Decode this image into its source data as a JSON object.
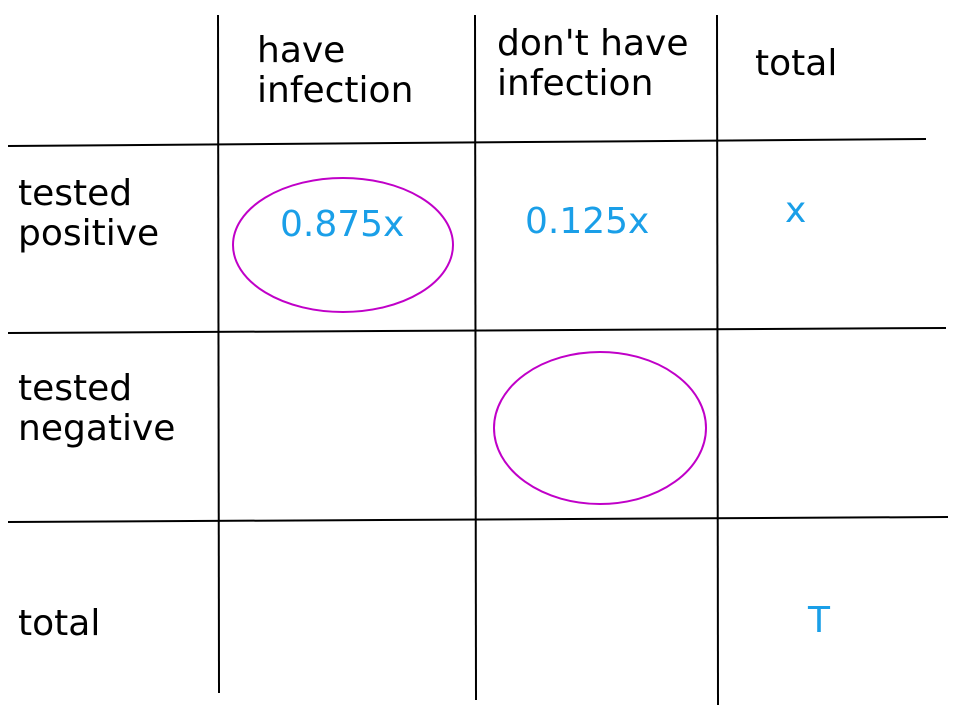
{
  "table": {
    "columns": [
      [
        "have",
        "infection"
      ],
      [
        "don't have",
        "infection"
      ],
      [
        "total"
      ]
    ],
    "rows": [
      {
        "label": [
          "tested",
          "positive"
        ],
        "cells": [
          "0.875x",
          "0.125x",
          "x"
        ]
      },
      {
        "label": [
          "tested",
          "negative"
        ],
        "cells": [
          null,
          null,
          null
        ]
      },
      {
        "label": [
          "total"
        ],
        "cells": [
          null,
          null,
          "T"
        ]
      }
    ]
  }
}
